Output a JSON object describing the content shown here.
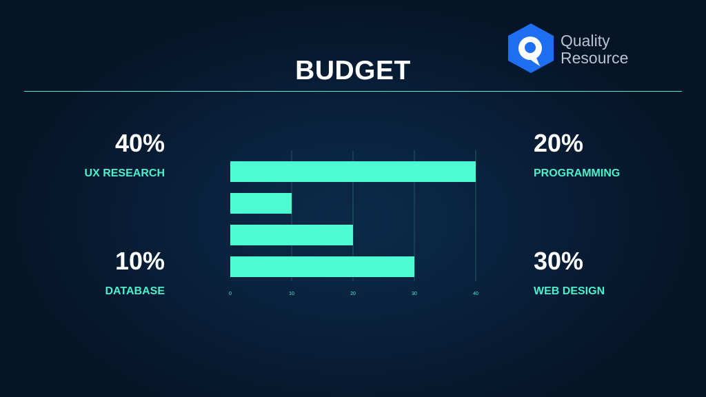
{
  "slide": {
    "title": "BUDGET"
  },
  "logo": {
    "line1": "Quality",
    "line2": "Resource",
    "icon": "q-hexagon-logo-icon"
  },
  "stats": {
    "ux_research": {
      "value": "40%",
      "label": "UX RESEARCH"
    },
    "database": {
      "value": "10%",
      "label": "DATABASE"
    },
    "programming": {
      "value": "20%",
      "label": "PROGRAMMING"
    },
    "web_design": {
      "value": "30%",
      "label": "WEB DESIGN"
    }
  },
  "colors": {
    "bar": "#4dfcd3",
    "accent_text": "#4cf0cc",
    "divider": "#5ce8cf",
    "background": "#0a2440",
    "logo_blue": "#1f6ff2"
  },
  "chart_data": {
    "type": "bar",
    "orientation": "horizontal",
    "values": [
      40,
      10,
      20,
      30
    ],
    "xlim": [
      0,
      40
    ],
    "xticks": [
      "0",
      "10",
      "20",
      "30",
      "40"
    ],
    "grid": true,
    "title": "",
    "xlabel": "",
    "ylabel": ""
  }
}
